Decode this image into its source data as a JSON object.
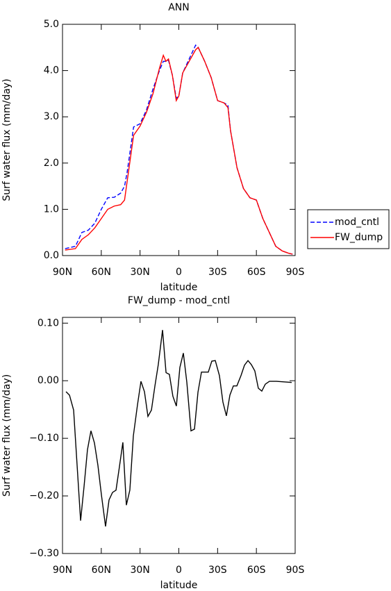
{
  "chart_data": [
    {
      "type": "line",
      "title": "ANN",
      "xlabel": "latitude",
      "ylabel": "Surf water flux (mm/day)",
      "x": [
        88,
        80,
        75,
        70,
        65,
        60,
        55,
        50,
        45,
        42,
        40,
        35,
        30,
        25,
        20,
        15,
        12,
        10,
        8,
        5,
        2,
        0,
        -3,
        -8,
        -13,
        -15,
        -20,
        -25,
        -30,
        -35,
        -38,
        -40,
        -45,
        -50,
        -55,
        -60,
        -65,
        -70,
        -75,
        -80,
        -85,
        -88
      ],
      "series": [
        {
          "name": "mod_cntl",
          "color": "#0000ff",
          "linestyle": "dashed",
          "values": [
            0.15,
            0.2,
            0.5,
            0.55,
            0.7,
            1.0,
            1.25,
            1.26,
            1.35,
            1.5,
            1.8,
            2.78,
            2.85,
            3.15,
            3.6,
            4.0,
            4.2,
            4.2,
            4.22,
            3.9,
            3.4,
            3.45,
            3.95,
            4.25,
            4.55,
            4.5,
            4.2,
            3.85,
            3.35,
            3.3,
            3.25,
            2.7,
            1.9,
            1.45,
            1.25,
            1.2,
            0.8,
            0.5,
            0.2,
            0.1,
            0.05,
            0.03
          ]
        },
        {
          "name": "FW_dump",
          "color": "#ff0000",
          "linestyle": "solid",
          "values": [
            0.12,
            0.15,
            0.35,
            0.45,
            0.6,
            0.8,
            1.0,
            1.07,
            1.1,
            1.2,
            1.6,
            2.6,
            2.8,
            3.1,
            3.5,
            4.05,
            4.33,
            4.2,
            4.25,
            3.9,
            3.35,
            3.45,
            3.95,
            4.2,
            4.45,
            4.5,
            4.2,
            3.85,
            3.35,
            3.3,
            3.2,
            2.7,
            1.9,
            1.45,
            1.25,
            1.2,
            0.8,
            0.5,
            0.2,
            0.1,
            0.05,
            0.03
          ]
        }
      ],
      "xlim": [
        90,
        -90
      ],
      "xticks": [
        {
          "value": 90,
          "label": "90N"
        },
        {
          "value": 60,
          "label": "60N"
        },
        {
          "value": 30,
          "label": "30N"
        },
        0,
        {
          "value": -30,
          "label": "30S"
        },
        {
          "value": -60,
          "label": "60S"
        },
        {
          "value": -90,
          "label": "90S"
        }
      ],
      "ylim": [
        0,
        5
      ],
      "yticks": [
        {
          "value": 0,
          "label": "0.0"
        },
        {
          "value": 1,
          "label": "1.0"
        },
        {
          "value": 2,
          "label": "2.0"
        },
        {
          "value": 3,
          "label": "3.0"
        },
        {
          "value": 4,
          "label": "4.0"
        },
        {
          "value": 5,
          "label": "5.0"
        }
      ],
      "legend": "right"
    },
    {
      "type": "line",
      "title": "FW_dump - mod_cntl",
      "xlabel": "latitude",
      "ylabel": "Surf water flux (mm/day)",
      "x": [
        87.3,
        84.6,
        81.4,
        76.0,
        73.3,
        70.7,
        68.0,
        65.3,
        62.6,
        59.9,
        56.7,
        54.0,
        51.3,
        48.6,
        46.0,
        43.3,
        40.6,
        37.9,
        35.2,
        32.0,
        29.3,
        26.6,
        23.9,
        21.2,
        18.5,
        15.9,
        12.6,
        9.9,
        7.3,
        4.6,
        1.9,
        -0.8,
        -3.5,
        -6.2,
        -9.4,
        -12.1,
        -14.8,
        -17.5,
        -22.8,
        -25.5,
        -28.2,
        -31.4,
        -34.1,
        -36.8,
        -39.5,
        -42.2,
        -44.9,
        -48.1,
        -50.8,
        -53.5,
        -56.1,
        -58.8,
        -61.5,
        -64.2,
        -66.9,
        -70.1,
        -75.5,
        -87.3
      ],
      "series": [
        {
          "name": "FW_dump - mod_cntl",
          "color": "#000000",
          "linestyle": "solid",
          "values": [
            -0.019,
            -0.025,
            -0.051,
            -0.243,
            -0.183,
            -0.12,
            -0.087,
            -0.108,
            -0.147,
            -0.198,
            -0.253,
            -0.207,
            -0.194,
            -0.19,
            -0.15,
            -0.107,
            -0.216,
            -0.19,
            -0.096,
            -0.042,
            -0.001,
            -0.019,
            -0.062,
            -0.051,
            -0.009,
            0.028,
            0.088,
            0.014,
            0.011,
            -0.027,
            -0.044,
            0.023,
            0.048,
            -0.003,
            -0.087,
            -0.084,
            -0.02,
            0.015,
            0.015,
            0.034,
            0.035,
            0.009,
            -0.037,
            -0.061,
            -0.025,
            -0.009,
            -0.009,
            0.009,
            0.027,
            0.035,
            0.028,
            0.017,
            -0.013,
            -0.018,
            -0.006,
            -0.001,
            -0.001,
            -0.003
          ]
        }
      ],
      "xlim": [
        90,
        -90
      ],
      "xticks": [
        {
          "value": 90,
          "label": "90N"
        },
        {
          "value": 60,
          "label": "60N"
        },
        {
          "value": 30,
          "label": "30N"
        },
        0,
        {
          "value": -30,
          "label": "30S"
        },
        {
          "value": -60,
          "label": "60S"
        },
        {
          "value": -90,
          "label": "90S"
        }
      ],
      "ylim": [
        -0.3,
        0.11
      ],
      "yticks": [
        {
          "value": -0.3,
          "label": "−0.30"
        },
        {
          "value": -0.2,
          "label": "−0.20"
        },
        {
          "value": -0.1,
          "label": "−0.10"
        },
        {
          "value": 0,
          "label": "0.00"
        },
        {
          "value": 0.1,
          "label": "0.10"
        }
      ]
    }
  ]
}
